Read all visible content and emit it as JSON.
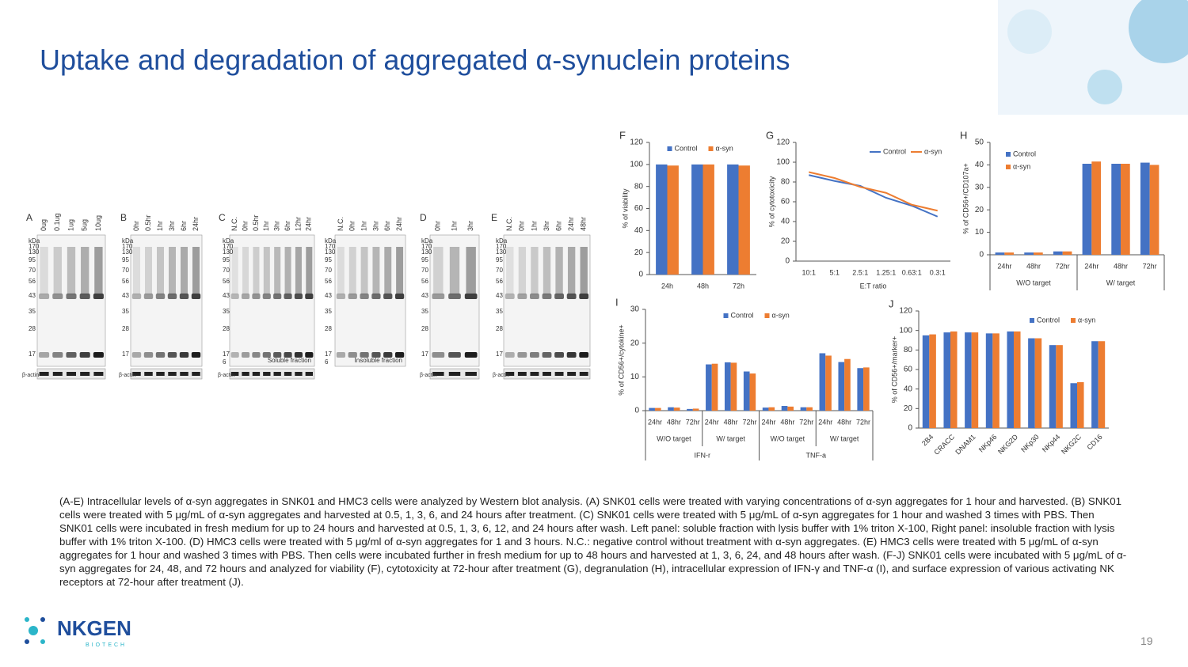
{
  "title": "Uptake and degradation of aggregated α-synuclein proteins",
  "blots": [
    {
      "panel": "A",
      "lanes": [
        "0ug",
        "0.1ug",
        "1ug",
        "5ug",
        "10ug"
      ],
      "kda_header": "kDa",
      "markers": [
        "170",
        "130",
        "95",
        "70",
        "56",
        "43",
        "35",
        "28",
        "17"
      ],
      "actin": "β-actin"
    },
    {
      "panel": "B",
      "lanes": [
        "0hr",
        "0.5hr",
        "1hr",
        "3hr",
        "6hr",
        "24hr"
      ],
      "kda_header": "kDa",
      "markers": [
        "170",
        "130",
        "95",
        "70",
        "56",
        "43",
        "35",
        "28",
        "17"
      ],
      "actin": "β-actin"
    },
    {
      "panel": "C",
      "lanes": [
        "N.C.",
        "0hr",
        "0.5hr",
        "1hr",
        "3hr",
        "6hr",
        "12hr",
        "24hr"
      ],
      "kda_header": "kDa",
      "markers": [
        "170",
        "130",
        "95",
        "70",
        "56",
        "43",
        "35",
        "28",
        "17",
        "6"
      ],
      "note": "Soluble fraction",
      "actin": "β-actin"
    },
    {
      "lanes": [
        "N.C.",
        "0hr",
        "1hr",
        "3hr",
        "6hr",
        "24hr"
      ],
      "kda_header": "kDa",
      "markers": [
        "170",
        "130",
        "95",
        "70",
        "56",
        "43",
        "35",
        "28",
        "17",
        "6"
      ],
      "note": "Insoluble fraction"
    },
    {
      "panel": "D",
      "lanes": [
        "0hr",
        "1hr",
        "3hr"
      ],
      "kda_header": "kDa",
      "markers": [
        "170",
        "130",
        "95",
        "70",
        "56",
        "43",
        "35",
        "28",
        "17"
      ],
      "actin": "β-actin"
    },
    {
      "panel": "E",
      "lanes": [
        "N.C.",
        "0hr",
        "1hr",
        "3hr",
        "6hr",
        "24hr",
        "48hr"
      ],
      "kda_header": "kDa",
      "markers": [
        "170",
        "130",
        "95",
        "70",
        "56",
        "43",
        "35",
        "28",
        "17"
      ],
      "actin": "β-actin"
    }
  ],
  "chart_data": [
    {
      "type": "bar",
      "panel": "F",
      "y_label": "% of viability",
      "categories": [
        "24h",
        "48h",
        "72h"
      ],
      "series": [
        {
          "name": "Control",
          "color": "#4472c4",
          "values": [
            100,
            100,
            100
          ]
        },
        {
          "name": "α-syn",
          "color": "#ed7d31",
          "values": [
            99,
            100,
            99
          ]
        }
      ],
      "ylim": [
        0,
        120
      ],
      "yticks": [
        0,
        20,
        40,
        60,
        80,
        100,
        120
      ],
      "legend": "top"
    },
    {
      "type": "line",
      "panel": "G",
      "y_label": "% of cytotoxicity",
      "x_label": "E:T ratio",
      "categories": [
        "10:1",
        "5:1",
        "2.5:1",
        "1.25:1",
        "0.63:1",
        "0.3:1"
      ],
      "series": [
        {
          "name": "Control",
          "color": "#4472c4",
          "values": [
            87,
            81,
            76,
            64,
            56,
            45
          ]
        },
        {
          "name": "α-syn",
          "color": "#ed7d31",
          "values": [
            90,
            84,
            75,
            69,
            57,
            51
          ]
        }
      ],
      "ylim": [
        0,
        120
      ],
      "yticks": [
        0,
        20,
        40,
        60,
        80,
        100,
        120
      ],
      "legend": "top-right"
    },
    {
      "type": "bar",
      "panel": "H",
      "y_label": "% of CD56+/CD107a+",
      "categories": [
        "24hr",
        "48hr",
        "72hr",
        "24hr",
        "48hr",
        "72hr"
      ],
      "groups": [
        "W/O target",
        "W/ target"
      ],
      "series": [
        {
          "name": "Control",
          "color": "#4472c4",
          "values": [
            1,
            1,
            1.5,
            40.5,
            40.5,
            41
          ]
        },
        {
          "name": "α-syn",
          "color": "#ed7d31",
          "values": [
            1,
            1,
            1.5,
            41.5,
            40.5,
            40
          ]
        }
      ],
      "ylim": [
        0,
        50
      ],
      "yticks": [
        0,
        10,
        20,
        30,
        40,
        50
      ],
      "legend": "top-left"
    },
    {
      "type": "bar",
      "panel": "I",
      "y_label": "% of CD56+/cytokine+",
      "categories": [
        "24hr",
        "48hr",
        "72hr",
        "24hr",
        "48hr",
        "72hr",
        "24hr",
        "48hr",
        "72hr",
        "24hr",
        "48hr",
        "72hr"
      ],
      "groups": [
        "W/O target",
        "W/ target",
        "W/O target",
        "W/ target"
      ],
      "supergroups": [
        "IFN-r",
        "TNF-a"
      ],
      "series": [
        {
          "name": "Control",
          "color": "#4472c4",
          "values": [
            0.8,
            1,
            0.5,
            13.7,
            14.3,
            11.6,
            0.9,
            1.4,
            1,
            17,
            14.4,
            12.6
          ]
        },
        {
          "name": "α-syn",
          "color": "#ed7d31",
          "values": [
            0.8,
            0.9,
            0.6,
            13.9,
            14.2,
            11,
            1,
            1.2,
            1,
            16.3,
            15.3,
            12.8
          ]
        }
      ],
      "ylim": [
        0,
        30
      ],
      "yticks": [
        0,
        10,
        20,
        30
      ],
      "legend": "top"
    },
    {
      "type": "bar",
      "panel": "J",
      "y_label": "% of CD56+/marker+",
      "categories": [
        "2B4",
        "CRACC",
        "DNAM1",
        "NKp46",
        "NKG2D",
        "NKp30",
        "NKp44",
        "NKG2C",
        "CD16"
      ],
      "rotate_labels": true,
      "series": [
        {
          "name": "Control",
          "color": "#4472c4",
          "values": [
            95,
            98,
            98,
            97,
            99,
            92,
            85,
            46,
            89
          ]
        },
        {
          "name": "α-syn",
          "color": "#ed7d31",
          "values": [
            96,
            99,
            98,
            97,
            99,
            92,
            85,
            47,
            89
          ]
        }
      ],
      "ylim": [
        0,
        120
      ],
      "yticks": [
        0,
        20,
        40,
        60,
        80,
        100,
        120
      ],
      "legend": "top-right"
    }
  ],
  "caption": "(A-E) Intracellular levels of α-syn aggregates in SNK01 and HMC3 cells were analyzed by Western blot analysis. (A) SNK01 cells were treated with varying concentrations of α-syn aggregates for 1 hour and harvested. (B) SNK01 cells were treated with 5 μg/mL of α-syn aggregates and harvested at 0.5, 1, 3, 6, and 24 hours after treatment. (C) SNK01 cells were treated with 5 μg/mL of α-syn aggregates for 1 hour and washed 3 times with PBS. Then SNK01 cells were incubated in fresh medium for up to 24 hours and harvested at 0.5, 1, 3, 6, 12, and 24 hours after wash. Left panel: soluble fraction with lysis buffer with 1% triton X-100, Right panel: insoluble fraction with lysis buffer with 1% triton X-100. (D) HMC3 cells were treated with 5 μg/ml of α-syn aggregates for 1 and 3 hours. N.C.: negative control without treatment with α-syn aggregates. (E) HMC3 cells were treated with 5 μg/mL of α-syn aggregates for 1 hour and washed 3 times with PBS. Then cells were incubated further in fresh medium for up to 48 hours and harvested at 1, 3, 6, 24, and 48 hours after wash. (F-J) SNK01 cells were incubated with 5 μg/mL of α-syn aggregates for 24, 48, and 72 hours and analyzed for viability (F), cytotoxicity at 72-hour after treatment (G), degranulation (H), intracellular expression of IFN-γ and TNF-α (I), and surface expression of various activating NK receptors at 72-hour after treatment (J).",
  "logo": {
    "name": "NKGEN",
    "sub": "BIOTECH"
  },
  "page_number": "19"
}
